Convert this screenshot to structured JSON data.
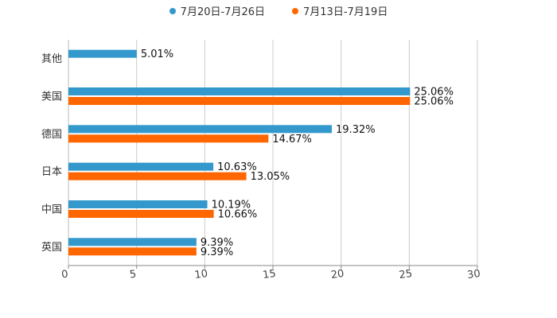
{
  "chart_data": {
    "type": "bar",
    "orientation": "horizontal",
    "categories": [
      "其他",
      "美国",
      "德国",
      "日本",
      "中国",
      "英国"
    ],
    "series": [
      {
        "name": "7月20日-7月26日",
        "color": "#3399cc",
        "values": [
          5.01,
          25.06,
          19.32,
          10.63,
          10.19,
          9.39
        ],
        "labels": [
          "5.01%",
          "25.06%",
          "19.32%",
          "10.63%",
          "10.19%",
          "9.39%"
        ]
      },
      {
        "name": "7月13日-7月19日",
        "color": "#ff6600",
        "values": [
          null,
          25.06,
          14.67,
          13.05,
          10.66,
          9.39
        ],
        "labels": [
          null,
          "25.06%",
          "14.67%",
          "13.05%",
          "10.66%",
          "9.39%"
        ]
      }
    ],
    "xlim": [
      0,
      30
    ],
    "xticks": [
      "0",
      "5",
      "10",
      "15",
      "20",
      "25",
      "30"
    ],
    "legend_position": "top-center",
    "grid": true
  }
}
